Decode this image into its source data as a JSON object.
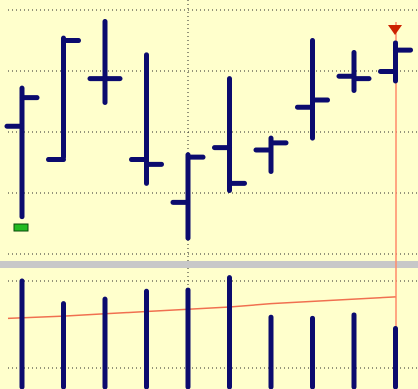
{
  "colors": {
    "background": "#ffffcc",
    "bar": "#0b0b6e",
    "volume_bar": "#0b0b6e",
    "grid": "#2a2a2a",
    "cursor_line": "#ff8a6a",
    "volume_ma": "#f07050",
    "separator": "#c8c8c8",
    "marker_green": "#22bb22",
    "marker_red": "#cc2200"
  },
  "icons": {
    "top_right": "down-triangle-marker",
    "bottom_left": "green-rectangle-marker"
  },
  "chart_data": [
    {
      "type": "ohlc",
      "title": "",
      "xlabel": "",
      "ylabel": "",
      "grid": "dotted",
      "legend": "none",
      "ylim": [
        0,
        100
      ],
      "bars": [
        {
          "open": 52,
          "high": 68,
          "low": 14,
          "close": 64
        },
        {
          "open": 38,
          "high": 89,
          "low": 39,
          "close": 88
        },
        {
          "open": 72,
          "high": 96,
          "low": 62,
          "close": 72
        },
        {
          "open": 38,
          "high": 82,
          "low": 28,
          "close": 36
        },
        {
          "open": 20,
          "high": 40,
          "low": 5,
          "close": 39
        },
        {
          "open": 43,
          "high": 72,
          "low": 25,
          "close": 28
        },
        {
          "open": 42,
          "high": 47,
          "low": 33,
          "close": 45
        },
        {
          "open": 60,
          "high": 88,
          "low": 47,
          "close": 63
        },
        {
          "open": 73,
          "high": 83,
          "low": 67,
          "close": 72
        },
        {
          "open": 75,
          "high": 87,
          "low": 71,
          "close": 84
        }
      ]
    },
    {
      "type": "bar",
      "title": "",
      "xlabel": "",
      "ylabel": "",
      "grid": "dotted",
      "legend": "none",
      "ylim": [
        0,
        100
      ],
      "values": [
        92,
        72,
        76,
        83,
        84,
        95,
        60,
        59,
        62,
        50
      ],
      "moving_average": [
        59,
        61,
        63,
        65,
        67,
        69,
        72,
        74,
        76,
        78
      ]
    }
  ]
}
